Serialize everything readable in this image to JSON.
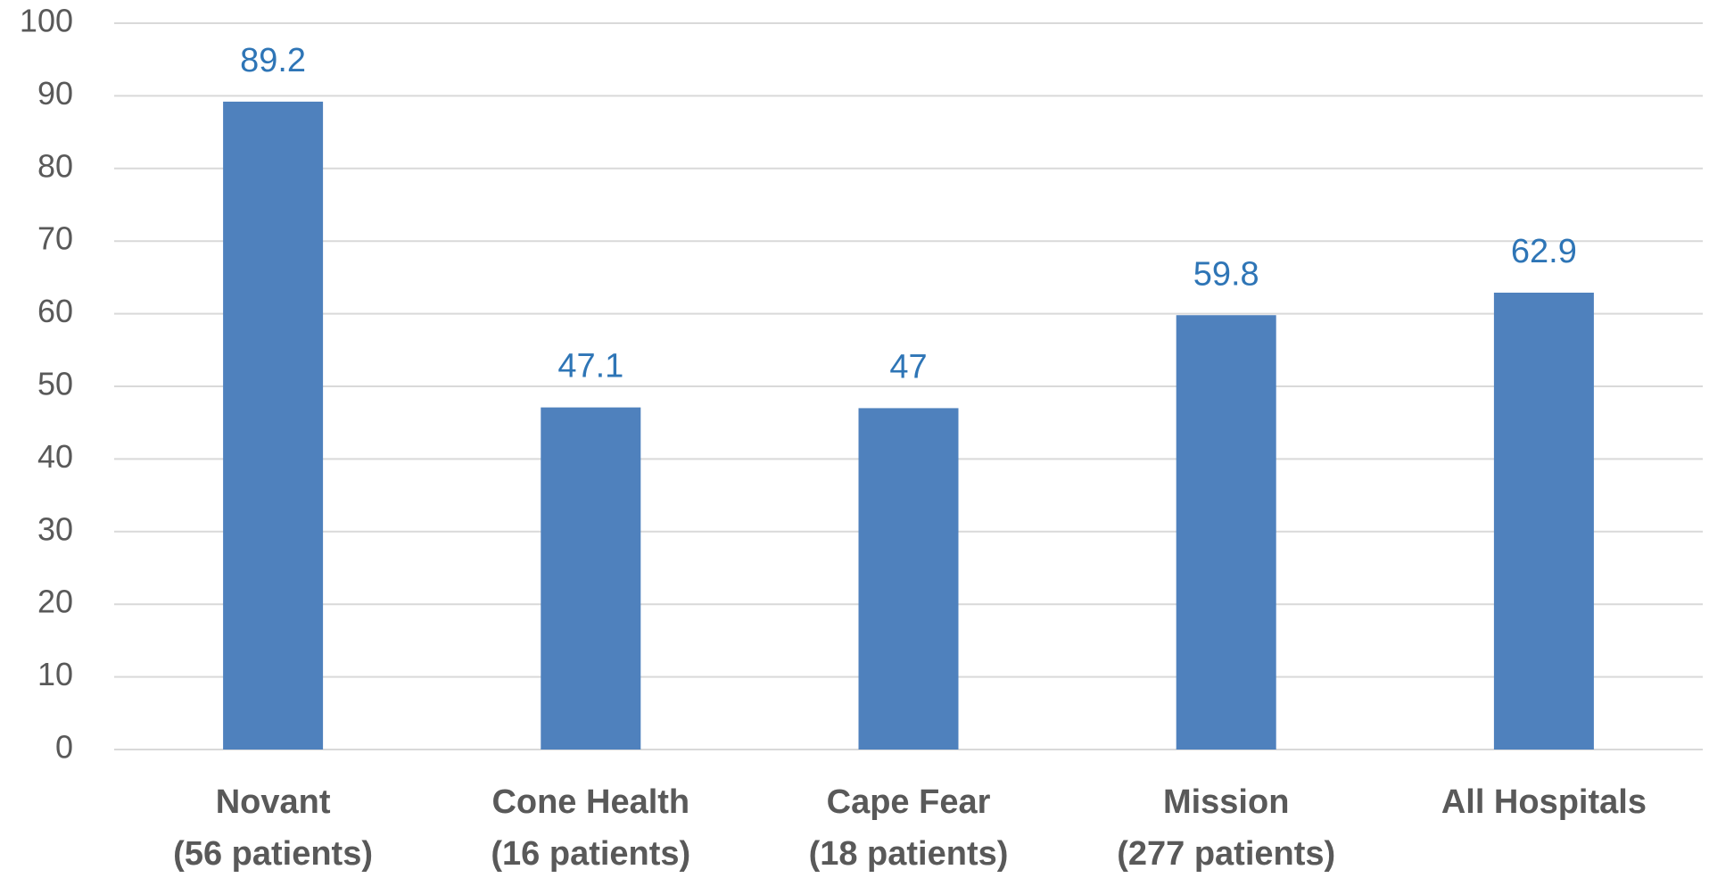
{
  "chart_data": {
    "type": "bar",
    "categories": [
      [
        "Novant",
        "(56 patients)"
      ],
      [
        "Cone Health",
        "(16 patients)"
      ],
      [
        "Cape Fear",
        "(18 patients)"
      ],
      [
        "Mission",
        "(277 patients)"
      ],
      [
        "All Hospitals"
      ]
    ],
    "values": [
      89.2,
      47.1,
      47,
      59.8,
      62.9
    ],
    "color": "#4f81bd",
    "ylim": [
      0,
      100
    ],
    "yticks": [
      0,
      10,
      20,
      30,
      40,
      50,
      60,
      70,
      80,
      90,
      100
    ],
    "grid": true
  }
}
